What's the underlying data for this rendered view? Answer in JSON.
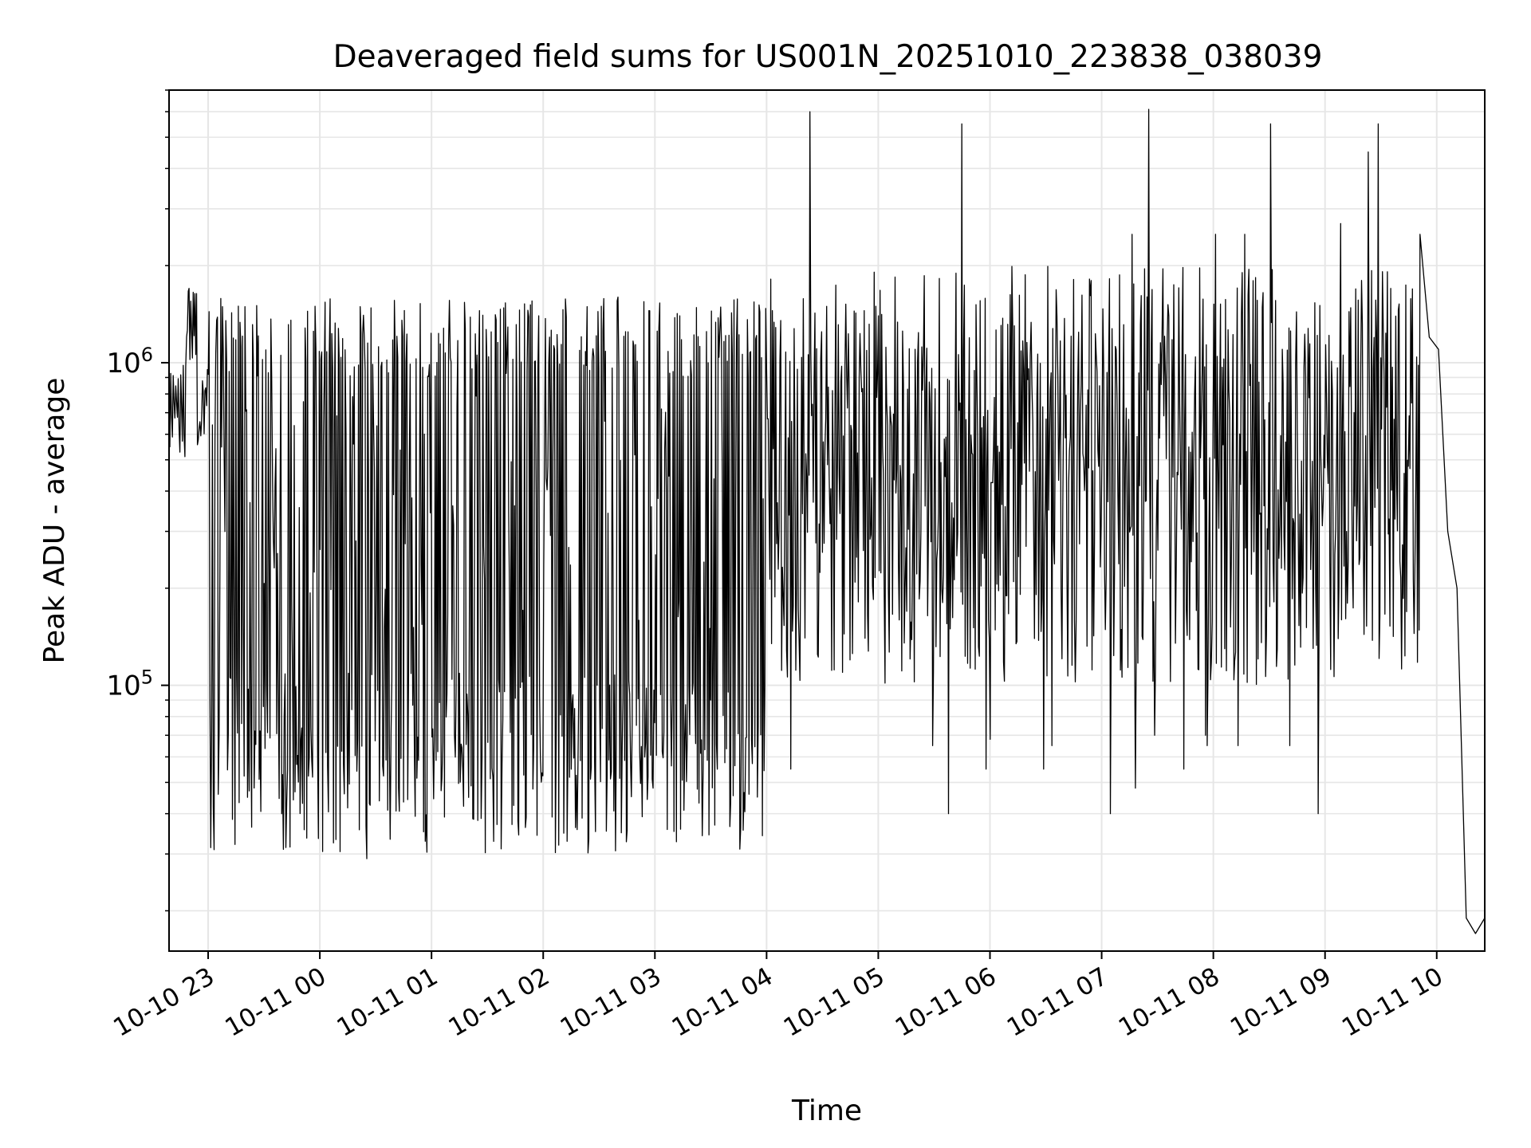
{
  "chart_data": {
    "type": "line",
    "title": "Deaveraged field sums for US001N_20251010_223838_038039",
    "xlabel": "Time",
    "ylabel": "Peak ADU - average",
    "yscale": "log",
    "ylim": [
      15000,
      7000000
    ],
    "xlim_hours": [
      -0.35,
      11.43
    ],
    "x_ticks": [
      {
        "hour": 0,
        "label": "10-10 23"
      },
      {
        "hour": 1,
        "label": "10-11 00"
      },
      {
        "hour": 2,
        "label": "10-11 01"
      },
      {
        "hour": 3,
        "label": "10-11 02"
      },
      {
        "hour": 4,
        "label": "10-11 03"
      },
      {
        "hour": 5,
        "label": "10-11 04"
      },
      {
        "hour": 6,
        "label": "10-11 05"
      },
      {
        "hour": 7,
        "label": "10-11 06"
      },
      {
        "hour": 8,
        "label": "10-11 07"
      },
      {
        "hour": 9,
        "label": "10-11 08"
      },
      {
        "hour": 10,
        "label": "10-11 09"
      },
      {
        "hour": 11,
        "label": "10-11 10"
      }
    ],
    "y_ticks": [
      {
        "value": 100000,
        "base": "10",
        "exp": "5"
      },
      {
        "value": 1000000,
        "base": "10",
        "exp": "6"
      }
    ],
    "grid": true,
    "line_color": "#000000",
    "grid_color": "#e6e6e6",
    "series": [
      {
        "name": "Deaveraged field sums",
        "note": "time in hours from 2025-10-10 23:00; values in ADU (approximate reading of the plot)",
        "segments": [
          {
            "t0": -0.35,
            "t1": 0.0,
            "base": [
              500000,
              1000000
            ],
            "spikes": [],
            "note": "initial high region"
          },
          {
            "t0": 0.0,
            "t1": 5.0,
            "low": [
              30000,
              110000
            ],
            "high": [
              900000,
              1600000
            ],
            "note": "bimodal switching region"
          },
          {
            "t0": 5.0,
            "t1": 10.85,
            "base": [
              100000,
              2000000
            ],
            "spikes": [
              6000000,
              5500000,
              4500000,
              4000000,
              3500000,
              2700000,
              2500000,
              2200000
            ],
            "dips": [
              40000,
              55000,
              65000,
              70000
            ],
            "note": "noisy high region"
          },
          {
            "t0": 10.85,
            "t1": 11.43,
            "end_values": [
              1200000,
              1100000,
              300000,
              200000,
              19000,
              17000,
              19000
            ],
            "note": "final drop"
          }
        ],
        "key_points": [
          {
            "t": -0.35,
            "v": 1000000
          },
          {
            "t": -0.17,
            "v": 1700000
          },
          {
            "t": 0.2,
            "v": 105000
          },
          {
            "t": 0.67,
            "v": 31000
          },
          {
            "t": 1.42,
            "v": 29000
          },
          {
            "t": 6.75,
            "v": 5500000
          },
          {
            "t": 7.0,
            "v": 68000
          },
          {
            "t": 8.3,
            "v": 48000
          },
          {
            "t": 8.42,
            "v": 6100000
          },
          {
            "t": 11.32,
            "v": 17000
          }
        ]
      }
    ]
  }
}
